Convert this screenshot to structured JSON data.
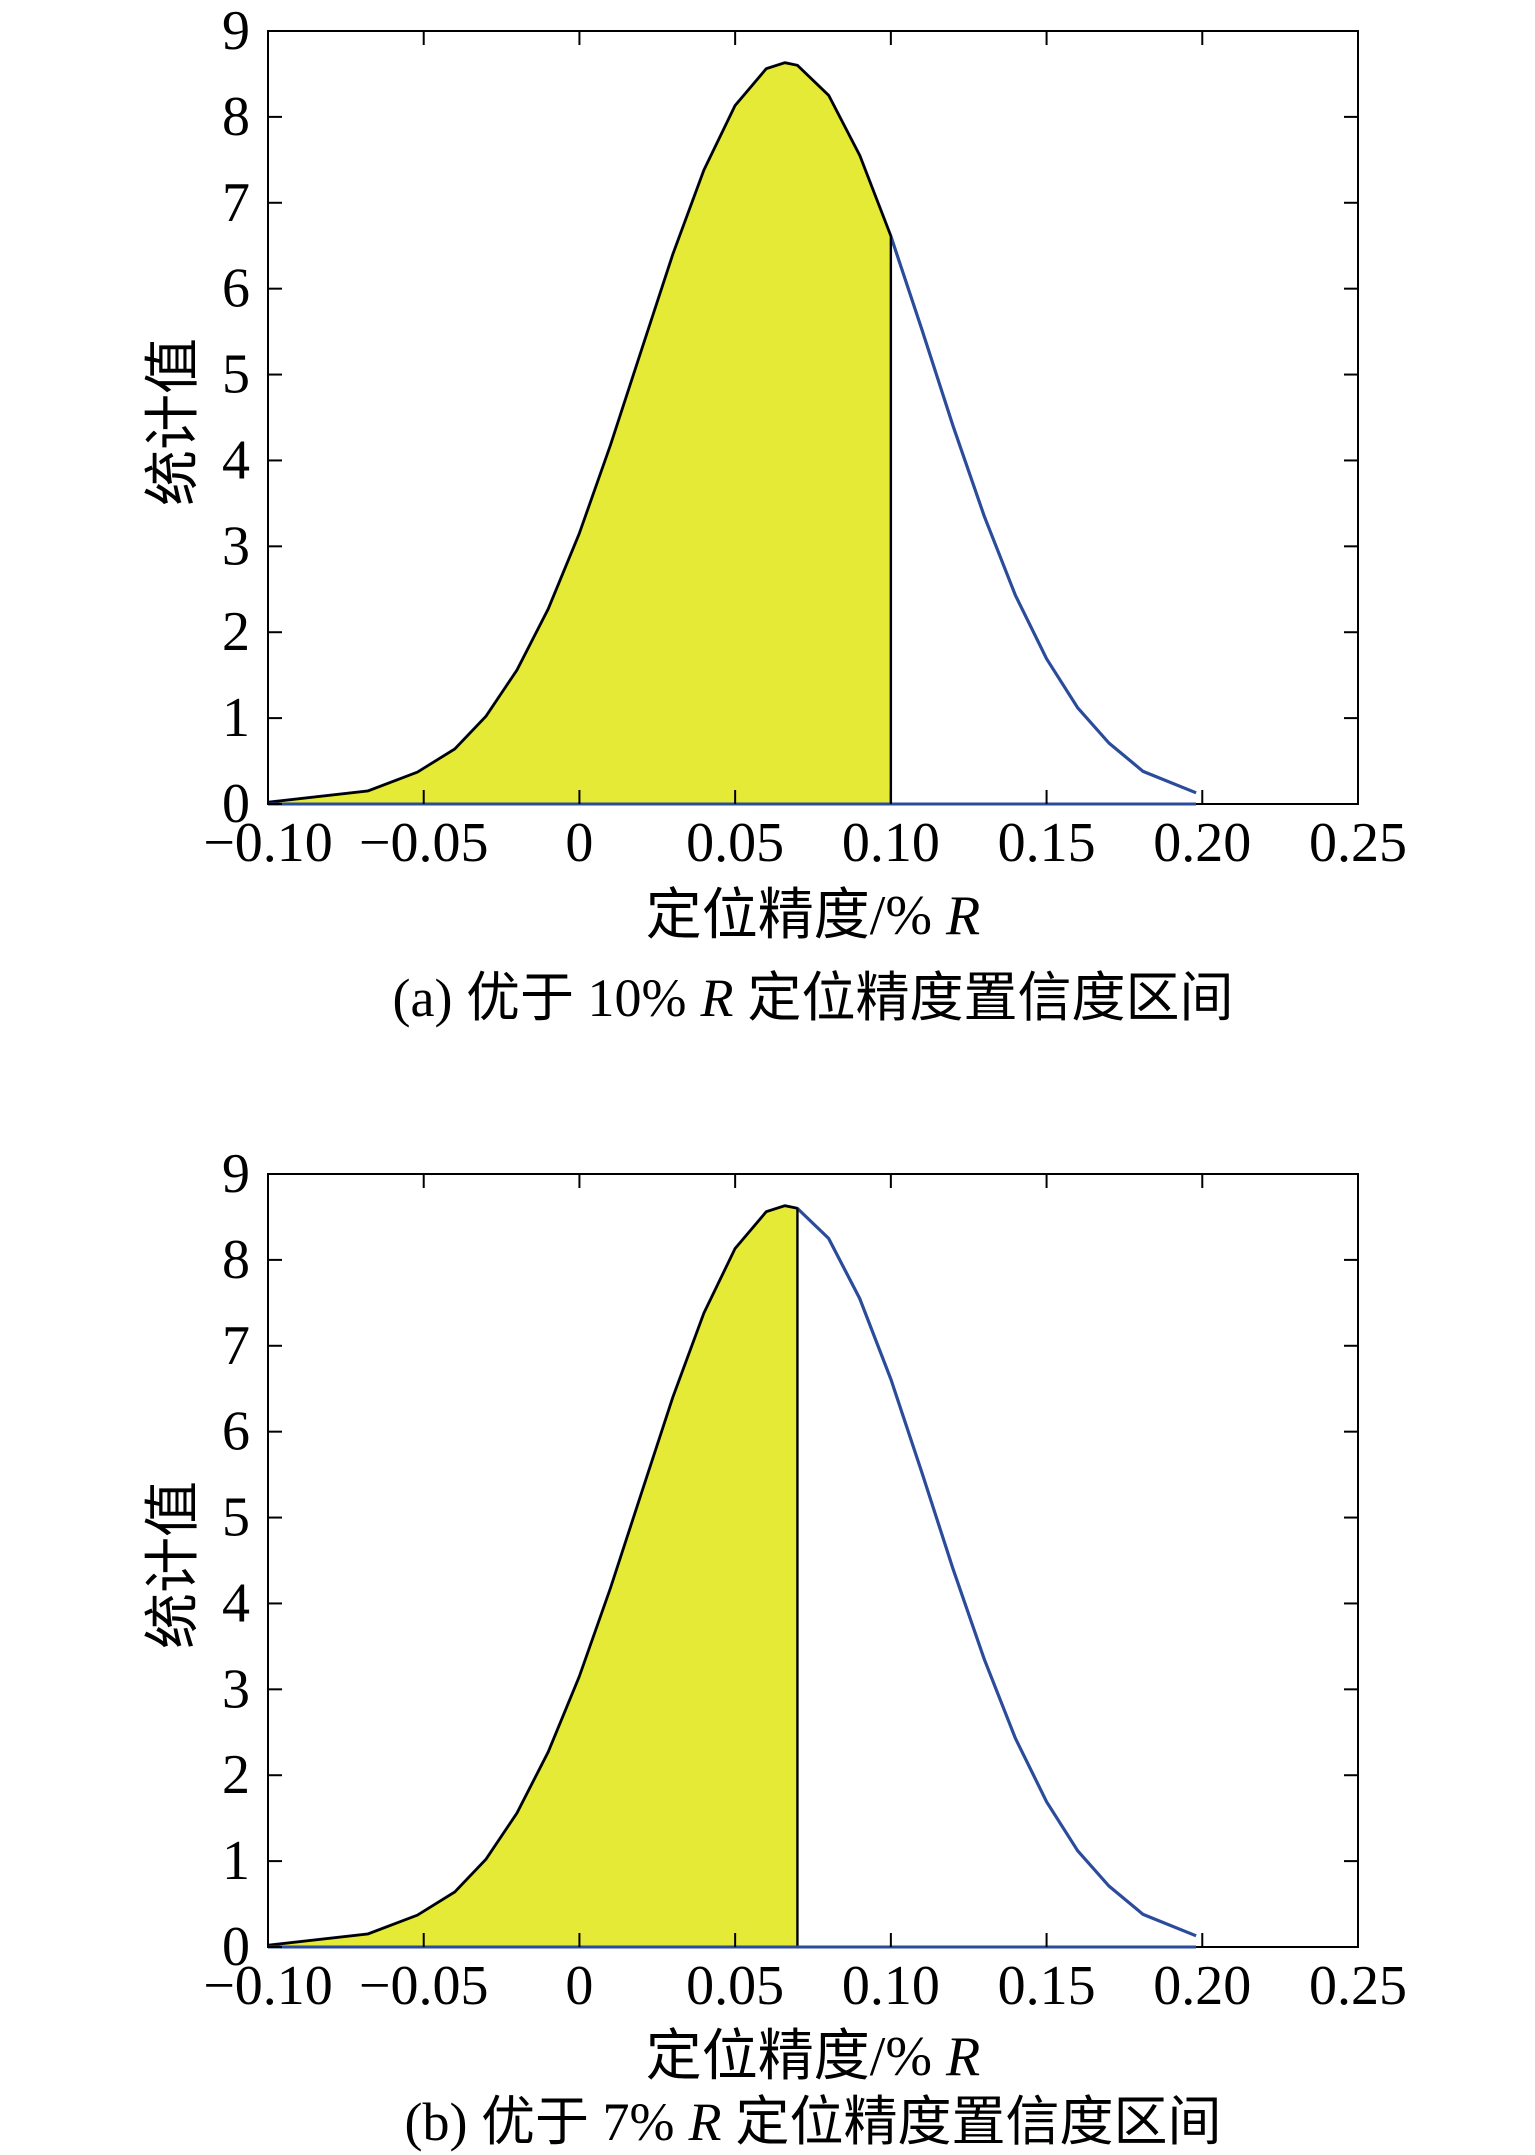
{
  "colors": {
    "shaded_fill": "#e5ea36",
    "shaded_edge": "#000000",
    "curve": "#2b4b9b"
  },
  "chart_data": [
    {
      "type": "area",
      "ylabel": "统计值",
      "xlabel": {
        "text": "定位精度/%",
        "unit": "R"
      },
      "caption": {
        "before": "(a) 优于 10%",
        "unit": "R",
        "after": "定位精度置信度区间"
      },
      "xlim": [
        -0.1,
        0.25
      ],
      "ylim": [
        0,
        9
      ],
      "grid": false,
      "legend": false,
      "xticks": {
        "values": [
          -0.1,
          -0.05,
          0,
          0.05,
          0.1,
          0.15,
          0.2,
          0.25
        ],
        "labels": [
          "−0.10",
          "−0.05",
          "0",
          "0.05",
          "0.10",
          "0.15",
          "0.20",
          "0.25"
        ]
      },
      "yticks": {
        "values": [
          0,
          1,
          2,
          3,
          4,
          5,
          6,
          7,
          8,
          9
        ],
        "labels": [
          "0",
          "1",
          "2",
          "3",
          "4",
          "5",
          "6",
          "7",
          "8",
          "9"
        ]
      },
      "shaded_region": {
        "from": -0.1,
        "to": 0.1
      },
      "series": [
        {
          "x": [
            -0.1,
            -0.068,
            -0.052,
            -0.04,
            -0.03,
            -0.02,
            -0.01,
            0.0,
            0.01,
            0.02,
            0.03,
            0.04,
            0.05,
            0.06,
            0.066,
            0.07,
            0.08,
            0.09,
            0.1,
            0.11,
            0.12,
            0.13,
            0.14,
            0.15,
            0.16,
            0.17,
            0.181,
            0.198
          ],
          "y": [
            0.02,
            0.15,
            0.37,
            0.64,
            1.02,
            1.56,
            2.27,
            3.15,
            4.18,
            5.29,
            6.4,
            7.38,
            8.13,
            8.56,
            8.63,
            8.6,
            8.25,
            7.55,
            6.61,
            5.52,
            4.4,
            3.35,
            2.43,
            1.69,
            1.12,
            0.71,
            0.38,
            0.13
          ]
        }
      ]
    },
    {
      "type": "area",
      "ylabel": "统计值",
      "xlabel": {
        "text": "定位精度/%",
        "unit": "R"
      },
      "caption": {
        "before": "(b) 优于 7%",
        "unit": "R",
        "after": "定位精度置信度区间"
      },
      "xlim": [
        -0.1,
        0.25
      ],
      "ylim": [
        0,
        9
      ],
      "grid": false,
      "legend": false,
      "xticks": {
        "values": [
          -0.1,
          -0.05,
          0,
          0.05,
          0.1,
          0.15,
          0.2,
          0.25
        ],
        "labels": [
          "−0.10",
          "−0.05",
          "0",
          "0.05",
          "0.10",
          "0.15",
          "0.20",
          "0.25"
        ]
      },
      "yticks": {
        "values": [
          0,
          1,
          2,
          3,
          4,
          5,
          6,
          7,
          8,
          9
        ],
        "labels": [
          "0",
          "1",
          "2",
          "3",
          "4",
          "5",
          "6",
          "7",
          "8",
          "9"
        ]
      },
      "shaded_region": {
        "from": -0.1,
        "to": 0.07
      },
      "series": [
        {
          "x": [
            -0.1,
            -0.068,
            -0.052,
            -0.04,
            -0.03,
            -0.02,
            -0.01,
            0.0,
            0.01,
            0.02,
            0.03,
            0.04,
            0.05,
            0.06,
            0.066,
            0.07,
            0.08,
            0.09,
            0.1,
            0.11,
            0.12,
            0.13,
            0.14,
            0.15,
            0.16,
            0.17,
            0.181,
            0.198
          ],
          "y": [
            0.02,
            0.15,
            0.37,
            0.64,
            1.02,
            1.56,
            2.27,
            3.15,
            4.18,
            5.29,
            6.4,
            7.38,
            8.13,
            8.56,
            8.63,
            8.6,
            8.25,
            7.55,
            6.61,
            5.52,
            4.4,
            3.35,
            2.43,
            1.69,
            1.12,
            0.71,
            0.38,
            0.13
          ]
        }
      ]
    }
  ]
}
